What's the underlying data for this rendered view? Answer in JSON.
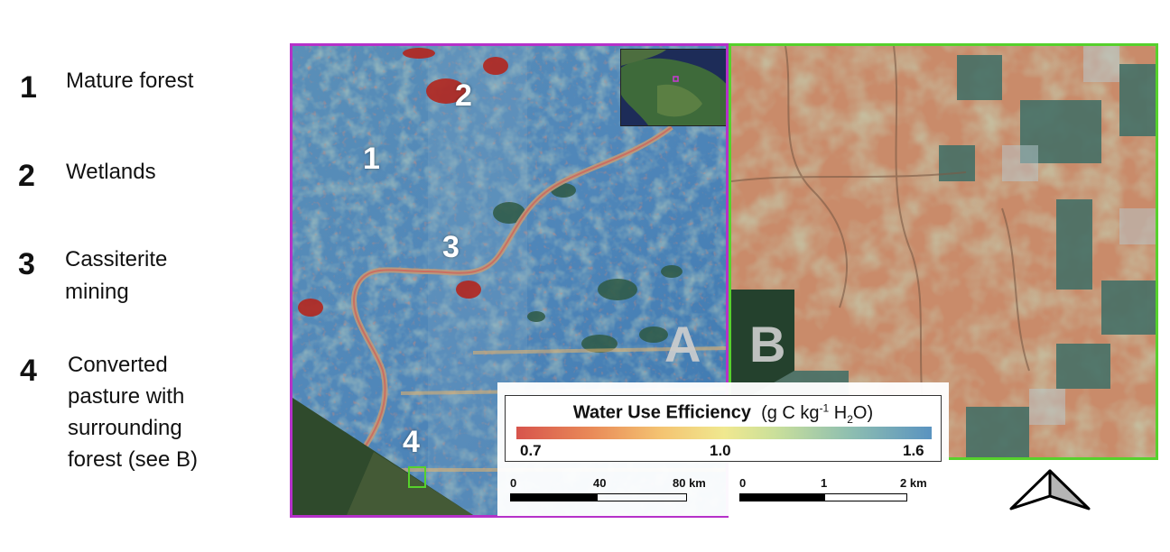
{
  "legend_items": [
    {
      "number": "1",
      "label": "Mature forest"
    },
    {
      "number": "2",
      "label": "Wetlands"
    },
    {
      "number": "3",
      "label": "Cassiterite\nmining"
    },
    {
      "number": "4",
      "label": "Converted\npasture with\nsurrounding\nforest (see B)"
    }
  ],
  "map_a": {
    "letter": "A",
    "markers": [
      "1",
      "2",
      "3",
      "4"
    ],
    "frame_color": "#b531c9"
  },
  "map_b": {
    "letter": "B",
    "frame_color": "#56d12c"
  },
  "colorbar": {
    "title": "Water Use Efficiency",
    "unit_prefix": "(g C kg",
    "unit_sup": "-1",
    "unit_mid": " H",
    "unit_sub": "2",
    "unit_suffix": "O)",
    "ticks": [
      "0.7",
      "1.0",
      "1.6"
    ],
    "low_color": "#d7544c",
    "high_color": "#5a93c0"
  },
  "scalebar_a": {
    "labels": [
      "0",
      "40",
      "80 km"
    ]
  },
  "scalebar_b": {
    "labels": [
      "0",
      "1",
      "2 km"
    ]
  },
  "north_arrow": {
    "icon": "north-arrow-icon"
  }
}
